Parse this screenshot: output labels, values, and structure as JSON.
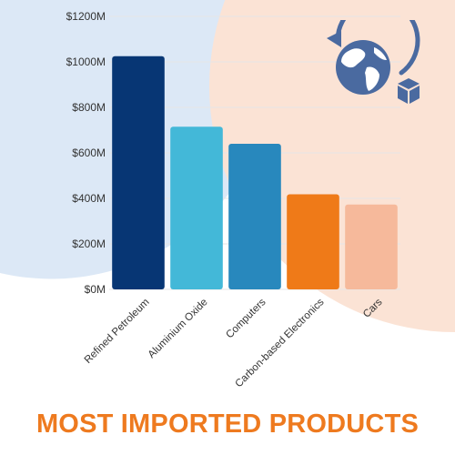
{
  "colors": {
    "accent": "#ee7a1f",
    "bg_blue": "#dce8f6",
    "bg_peach": "#fbe3d5",
    "icon_blue": "#4a6aa0",
    "grid": "#e6e6e6"
  },
  "icon": "globe-return-box-icon",
  "title": "MOST IMPORTED PRODUCTS",
  "chart_data": {
    "type": "bar",
    "title": "MOST IMPORTED PRODUCTS",
    "xlabel": "",
    "ylabel": "",
    "ylim": [
      0,
      1200
    ],
    "y_ticks": [
      {
        "value": 0,
        "label": "$0M"
      },
      {
        "value": 200,
        "label": "$200M"
      },
      {
        "value": 400,
        "label": "$400M"
      },
      {
        "value": 600,
        "label": "$600M"
      },
      {
        "value": 800,
        "label": "$800M"
      },
      {
        "value": 1000,
        "label": "$1000M"
      },
      {
        "value": 1200,
        "label": "$1200M"
      }
    ],
    "grid": true,
    "legend": "none",
    "categories": [
      "Refined Petroleum",
      "Aluminium Oxide",
      "Computers",
      "Carbon-based Electronics",
      "Cars"
    ],
    "values": [
      1025,
      715,
      640,
      418,
      373
    ],
    "bar_colors": [
      "#073674",
      "#43b8d8",
      "#2888bd",
      "#ef7a18",
      "#f6b99b"
    ]
  }
}
